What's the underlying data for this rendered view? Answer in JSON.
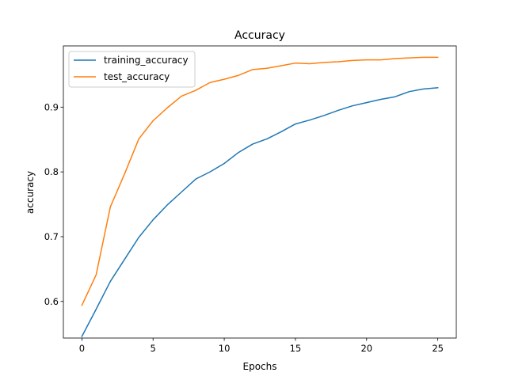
{
  "chart_data": {
    "type": "line",
    "title": "Accuracy",
    "xlabel": "Epochs",
    "ylabel": "accuracy",
    "xlim": [
      -1.3,
      26.3
    ],
    "ylim": [
      0.5435,
      0.9945
    ],
    "xticks": [
      0,
      5,
      10,
      15,
      20,
      25
    ],
    "yticks": [
      0.6,
      0.7,
      0.8,
      0.9
    ],
    "xtick_labels": [
      "0",
      "5",
      "10",
      "15",
      "20",
      "25"
    ],
    "ytick_labels": [
      "0.6",
      "0.7",
      "0.8",
      "0.9"
    ],
    "grid": false,
    "legend_position": "top-left",
    "x": [
      0,
      1,
      2,
      3,
      4,
      5,
      6,
      7,
      8,
      9,
      10,
      11,
      12,
      13,
      14,
      15,
      16,
      17,
      18,
      19,
      20,
      21,
      22,
      23,
      24,
      25
    ],
    "series": [
      {
        "name": "training_accuracy",
        "color": "#1f77b4",
        "values": [
          0.546,
          0.588,
          0.631,
          0.665,
          0.699,
          0.726,
          0.749,
          0.769,
          0.789,
          0.8,
          0.813,
          0.83,
          0.843,
          0.851,
          0.862,
          0.874,
          0.88,
          0.887,
          0.895,
          0.902,
          0.907,
          0.912,
          0.916,
          0.924,
          0.928,
          0.93
        ]
      },
      {
        "name": "test_accuracy",
        "color": "#ff7f0e",
        "values": [
          0.594,
          0.641,
          0.746,
          0.797,
          0.851,
          0.879,
          0.899,
          0.917,
          0.926,
          0.938,
          0.943,
          0.949,
          0.958,
          0.96,
          0.964,
          0.968,
          0.967,
          0.969,
          0.97,
          0.972,
          0.973,
          0.973,
          0.975,
          0.976,
          0.977,
          0.977
        ]
      }
    ]
  }
}
